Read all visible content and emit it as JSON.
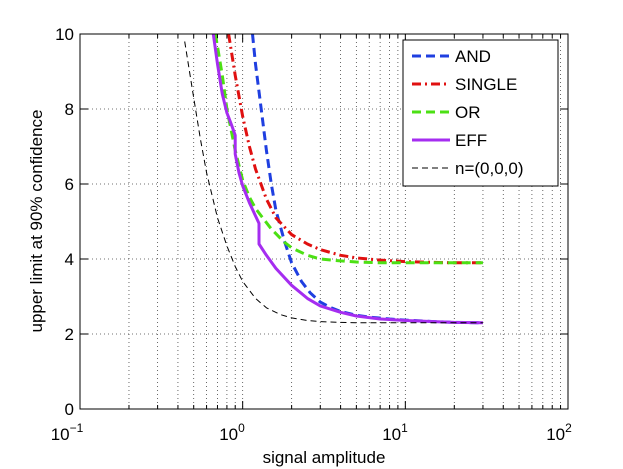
{
  "chart_data": {
    "type": "line",
    "title": "",
    "xlabel": "signal amplitude",
    "ylabel": "upper limit at 90% confidence",
    "xscale": "log",
    "xlim": [
      0.1,
      100
    ],
    "ylim": [
      0,
      10
    ],
    "x_ticks": [
      {
        "base": "10",
        "exp": "−1",
        "value": 0.1
      },
      {
        "base": "10",
        "exp": "0",
        "value": 1
      },
      {
        "base": "10",
        "exp": "1",
        "value": 10
      },
      {
        "base": "10",
        "exp": "2",
        "value": 100
      }
    ],
    "y_ticks": [
      {
        "label": "0",
        "value": 0
      },
      {
        "label": "2",
        "value": 2
      },
      {
        "label": "4",
        "value": 4
      },
      {
        "label": "6",
        "value": 6
      },
      {
        "label": "8",
        "value": 8
      },
      {
        "label": "10",
        "value": 10
      }
    ],
    "grid": "on (dotted, major and minor x)",
    "legend_position": "top-right",
    "series": [
      {
        "name": "AND",
        "color": "#1f3fe0",
        "style": "dashed",
        "x": [
          1.15,
          1.2,
          1.3,
          1.4,
          1.5,
          1.6,
          1.8,
          2.0,
          2.3,
          2.6,
          3.0,
          3.5,
          4.0,
          5.0,
          6.0,
          8.0,
          10,
          15,
          20,
          30
        ],
        "y": [
          10.0,
          9.2,
          8.0,
          6.9,
          6.0,
          5.3,
          4.5,
          3.9,
          3.4,
          3.1,
          2.85,
          2.7,
          2.6,
          2.5,
          2.45,
          2.4,
          2.37,
          2.33,
          2.31,
          2.3
        ]
      },
      {
        "name": "SINGLE",
        "color": "#e01010",
        "style": "dash-dot",
        "x": [
          0.82,
          0.9,
          1.0,
          1.1,
          1.2,
          1.4,
          1.6,
          2.0,
          2.5,
          3.0,
          4.0,
          5.0,
          7.0,
          10,
          15,
          20,
          30
        ],
        "y": [
          10.0,
          8.9,
          7.8,
          7.0,
          6.4,
          5.6,
          5.1,
          4.65,
          4.4,
          4.25,
          4.1,
          4.03,
          3.97,
          3.93,
          3.91,
          3.9,
          3.9
        ]
      },
      {
        "name": "OR",
        "color": "#4ce014",
        "style": "dashed",
        "x": [
          0.68,
          0.75,
          0.8,
          0.9,
          1.0,
          1.1,
          1.2,
          1.3,
          1.5,
          1.8,
          2.0,
          2.5,
          3.0,
          4.0,
          5.0,
          7.0,
          10,
          20,
          30
        ],
        "y": [
          10.0,
          8.9,
          8.0,
          6.9,
          6.1,
          5.65,
          5.35,
          5.15,
          4.8,
          4.45,
          4.3,
          4.1,
          4.0,
          3.95,
          3.92,
          3.9,
          3.9,
          3.9,
          3.9
        ]
      },
      {
        "name": "EFF",
        "color": "#a52df0",
        "style": "solid",
        "x": [
          0.66,
          0.7,
          0.75,
          0.8,
          0.85,
          0.9,
          0.9,
          0.95,
          1.0,
          1.1,
          1.2,
          1.26,
          1.26,
          1.4,
          1.6,
          2.0,
          2.5,
          3.0,
          4.0,
          5.0,
          7.0,
          10,
          15,
          20,
          30
        ],
        "y": [
          10.0,
          9.2,
          8.4,
          7.9,
          7.6,
          7.3,
          6.8,
          6.3,
          5.95,
          5.5,
          5.15,
          4.95,
          4.4,
          4.1,
          3.75,
          3.3,
          2.95,
          2.75,
          2.58,
          2.48,
          2.4,
          2.36,
          2.33,
          2.31,
          2.3
        ]
      },
      {
        "name": "n=(0,0,0)",
        "color": "#000000",
        "style": "thin-dashed",
        "x": [
          0.44,
          0.5,
          0.55,
          0.6,
          0.7,
          0.8,
          0.9,
          1.0,
          1.2,
          1.4,
          1.7,
          2.0,
          2.5,
          3.0,
          4.0,
          5.0,
          7.0,
          10,
          20,
          30
        ],
        "y": [
          9.8,
          8.3,
          7.2,
          6.3,
          5.1,
          4.35,
          3.8,
          3.4,
          2.95,
          2.7,
          2.52,
          2.43,
          2.36,
          2.33,
          2.31,
          2.3,
          2.3,
          2.3,
          2.3,
          2.3
        ]
      }
    ]
  }
}
